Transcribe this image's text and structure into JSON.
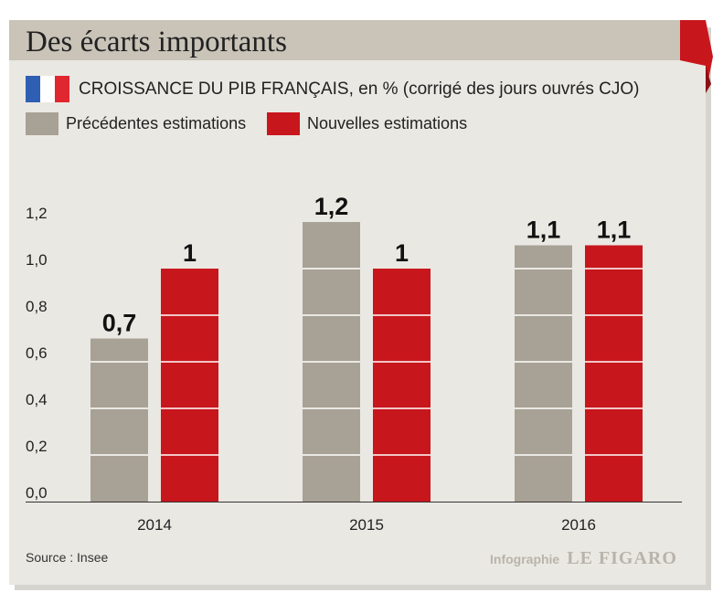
{
  "title": "Des écarts importants",
  "subtitle": "CROISSANCE DU PIB FRANÇAIS, en % (corrigé des jours ouvrés CJO)",
  "source": "Source : Insee",
  "credit_label": "Infographie",
  "credit_brand": "LE FIGARO",
  "colors": {
    "previous": "#a8a195",
    "new": "#c8161d",
    "title_bar": "#c9c3b8",
    "panel": "#eae8e2",
    "flag_blue": "#2f5fb3",
    "flag_white": "#ffffff",
    "flag_red": "#e0262f"
  },
  "chart_data": {
    "type": "bar",
    "title": "CROISSANCE DU PIB FRANÇAIS, en % (corrigé des jours ouvrés CJO)",
    "categories": [
      "2014",
      "2015",
      "2016"
    ],
    "series": [
      {
        "name": "Précédentes estimations",
        "values": [
          0.7,
          1.2,
          1.1
        ],
        "labels": [
          "0,7",
          "1,2",
          "1,1"
        ]
      },
      {
        "name": "Nouvelles estimations",
        "values": [
          1.0,
          1.0,
          1.1
        ],
        "labels": [
          "1",
          "1",
          "1,1"
        ]
      }
    ],
    "ylim": [
      0,
      1.2
    ],
    "yticks": [
      0,
      0.2,
      0.4,
      0.6,
      0.8,
      1.0,
      1.2
    ],
    "ytick_labels": [
      "0,0",
      "0,2",
      "0,4",
      "0,6",
      "0,8",
      "1,0",
      "1,2"
    ],
    "grid": "white lines across bars",
    "legend": "top-left"
  }
}
